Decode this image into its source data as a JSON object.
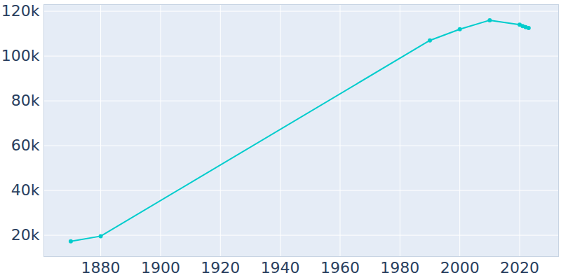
{
  "chart_data": {
    "type": "line",
    "x": [
      1870,
      1880,
      1990,
      2000,
      2010,
      2020,
      2021,
      2022,
      2023
    ],
    "values": [
      17300,
      19600,
      107000,
      112000,
      116000,
      114000,
      113400,
      112900,
      112500
    ],
    "color": "#00cccc",
    "marker": "circle",
    "xlim": [
      1861,
      2033
    ],
    "xticks": [
      1880,
      1900,
      1920,
      1940,
      1960,
      1980,
      2000,
      2020
    ],
    "ylim": [
      10500,
      123000
    ],
    "yticks": [
      {
        "value": 20000,
        "label": "20k"
      },
      {
        "value": 40000,
        "label": "40k"
      },
      {
        "value": 60000,
        "label": "60k"
      },
      {
        "value": 80000,
        "label": "80k"
      },
      {
        "value": 100000,
        "label": "100k"
      },
      {
        "value": 120000,
        "label": "120k"
      }
    ],
    "grid": true
  }
}
